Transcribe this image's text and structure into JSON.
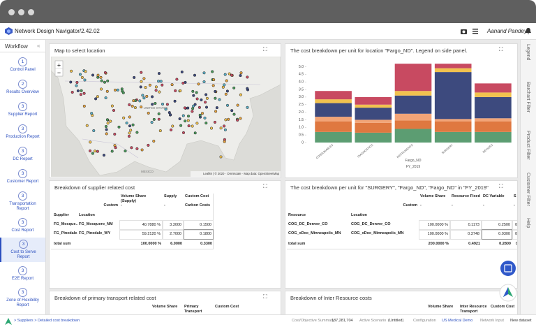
{
  "app": {
    "title": "Network Design Navigator/2.42.02",
    "user": "Aanand Pandey"
  },
  "workflow": {
    "title": "Workflow",
    "collapse": "«",
    "steps": [
      {
        "number": "1",
        "label": "Control Panel"
      },
      {
        "number": "2",
        "label": "Results Overview"
      },
      {
        "number": "3",
        "label": "Supplier Report"
      },
      {
        "number": "3",
        "label": "Production Report"
      },
      {
        "number": "3",
        "label": "DC Report"
      },
      {
        "number": "3",
        "label": "Customer Report"
      },
      {
        "number": "3",
        "label": "Transportation Report"
      },
      {
        "number": "3",
        "label": "Cost Report"
      },
      {
        "number": "3",
        "label": "Cost to Serve Report"
      },
      {
        "number": "3",
        "label": "E2E Report"
      },
      {
        "number": "3",
        "label": "Zone of Flexibility Report"
      }
    ]
  },
  "side_tabs": [
    "Legend",
    "Barchart Filter",
    "Product Filter",
    "Customer Filter",
    "Help"
  ],
  "map_panel": {
    "title": "Map to select location",
    "zoom_in": "+",
    "zoom_out": "−",
    "labels": [
      "UNITED STATES",
      "MEXICO"
    ],
    "attribution": "Leaflet | © 2020 · Omniscale · Map data: OpenStreetMap"
  },
  "chart_data": {
    "type": "bar",
    "stacked": true,
    "title": "The cost breakdown per unit for location \"Fargo_ND\". Legend on side panel.",
    "categories": [
      "CONSUMABLES",
      "DIAGNOSTICS",
      "INSTRUMENTS",
      "SURGERY",
      "DEVICES"
    ],
    "group_labels": [
      "Fargo_ND",
      "FY_2019"
    ],
    "series": [
      {
        "color": "#5c9d72",
        "values": [
          0.7,
          0.65,
          0.9,
          0.7,
          0.7
        ]
      },
      {
        "color": "#df7840",
        "values": [
          0.7,
          0.65,
          0.55,
          0.7,
          0.7
        ]
      },
      {
        "color": "#f2a477",
        "values": [
          0.3,
          0.2,
          0.45,
          0.15,
          0.2
        ]
      },
      {
        "color": "#3d4a7e",
        "values": [
          0.9,
          0.8,
          1.2,
          3.1,
          1.4
        ]
      },
      {
        "color": "#f1c24f",
        "values": [
          0.25,
          0.2,
          0.3,
          0.25,
          0.3
        ]
      },
      {
        "color": "#c84a61",
        "values": [
          0.55,
          0.5,
          1.8,
          0.3,
          0.6
        ]
      }
    ],
    "ylim": [
      0,
      5.3
    ],
    "yticks": [
      0,
      0.5,
      {
        "value": 1,
        "label": "1.0"
      },
      1.5,
      {
        "value": 2,
        "label": "2.0"
      },
      2.5,
      {
        "value": 3,
        "label": "3.0"
      },
      3.5,
      {
        "value": 4,
        "label": "4.0"
      },
      4.5,
      {
        "value": 5,
        "label": "5.0"
      }
    ],
    "grid": false
  },
  "supplier_table": {
    "title": "Breakdown of supplier related cost",
    "columns": [
      "Volume Share (Supply)",
      "Supply",
      "Custom Cost"
    ],
    "pivot_label": "Custom",
    "subheaders": [
      "-",
      "-",
      "Carbon Costs"
    ],
    "row_headers": [
      "Supplier",
      "Location"
    ],
    "rows": [
      [
        "FG_Mosque...",
        "FG_Mosquero_NM",
        "40.7880 %",
        "3.3000",
        "0.1500"
      ],
      [
        "FG_Pinedale...",
        "FG_Pinedale_WY",
        "59.2120 %",
        "2.7000",
        "0.1800"
      ]
    ],
    "total": {
      "label": "total sum",
      "values": [
        "100.0000 %",
        "6.0000",
        "0.3300"
      ]
    }
  },
  "resource_table": {
    "title": "The cost breakdown per unit for \"SURGERY\", \"Fargo_ND\", \"Fargo_ND\" in \"FY_2019\"",
    "columns": [
      "Volume Share",
      "Resource Fixed",
      "DC Variable",
      "S"
    ],
    "pivot_label": "Custom",
    "subheaders": [
      "-",
      "-",
      "-",
      "-"
    ],
    "row_headers": [
      "Resource",
      "Location"
    ],
    "rows": [
      [
        "COG_DC_Denver_CO",
        "COG_DC_Denver_CO",
        "100.0000 %",
        "0.1173",
        "0.2500",
        "0"
      ],
      [
        "COG_xDoc_Minneapolis_MN",
        "COG_xDoc_Minneapolis_MN",
        "100.0000 %",
        "0.3748",
        "0.0300",
        "0"
      ]
    ],
    "total": {
      "label": "total sum",
      "values": [
        "200.0000 %",
        "0.4921",
        "0.2800",
        "0"
      ]
    }
  },
  "transport_panel": {
    "title": "Breakdown of primary transport related cost",
    "columns": [
      "Volume Share",
      "Primary Transport",
      "Custom Cost"
    ]
  },
  "inter_panel": {
    "title": "Breakdown of Inter Resource costs",
    "columns": [
      "Volume Share",
      "Inter Resource Transport",
      "Custom Cost"
    ]
  },
  "footer": {
    "breadcrumb": [
      "Suppliers",
      "Detailed cost breakdown"
    ],
    "separator": ">",
    "items": [
      {
        "label": "Cost/Objective Summary",
        "value": "187,281,704"
      },
      {
        "label": "Active Scenario",
        "value": "(Untitled)"
      },
      {
        "label": "Configuration",
        "value": "US Medical Demo"
      },
      {
        "label": "Network Input",
        "value": "New dataset"
      }
    ]
  }
}
